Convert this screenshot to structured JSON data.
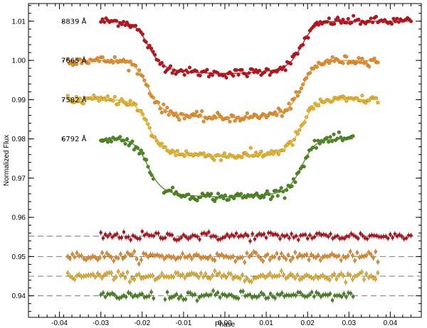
{
  "chart_data": {
    "type": "scatter",
    "xlabel": "Phase",
    "ylabel": "Normalized Flux",
    "xlim": [
      -0.0475,
      0.0475
    ],
    "ylim": [
      0.9345,
      1.0145
    ],
    "x_ticks": [
      -0.04,
      -0.03,
      -0.02,
      -0.01,
      0.0,
      0.01,
      0.02,
      0.03,
      0.04
    ],
    "x_tick_labels": [
      "-0.04",
      "-0.03",
      "-0.02",
      "-0.01",
      "0.00",
      "0.01",
      "0.02",
      "0.03",
      "0.04"
    ],
    "y_ticks": [
      0.94,
      0.95,
      0.96,
      0.97,
      0.98,
      0.99,
      1.0,
      1.01
    ],
    "y_tick_labels": [
      "0.94",
      "0.95",
      "0.96",
      "0.97",
      "0.98",
      "0.99",
      "1.00",
      "1.01"
    ],
    "grid": false,
    "series": [
      {
        "name": "8839 Å",
        "label": "8839 Å",
        "color": "#c0141c",
        "edge_color": "#7a0a10",
        "x_range": [
          -0.03,
          0.045
        ],
        "baseline": 1.01,
        "depth": 0.0115,
        "ingress": -0.0188,
        "egress": 0.0188,
        "transit_width": 0.0016,
        "residual_level": 0.9552
      },
      {
        "name": "7665 Å",
        "label": "7665 Å",
        "color": "#e8902a",
        "edge_color": "#9a5a12",
        "x_range": [
          -0.038,
          0.037
        ],
        "baseline": 1.0,
        "depth": 0.0128,
        "ingress": -0.0188,
        "egress": 0.0188,
        "transit_width": 0.0016,
        "residual_level": 0.95
      },
      {
        "name": "7582 Å",
        "label": "7582 Å",
        "color": "#e8b42a",
        "edge_color": "#9a7612",
        "x_range": [
          -0.038,
          0.037
        ],
        "baseline": 0.99,
        "depth": 0.0125,
        "ingress": -0.0188,
        "egress": 0.0188,
        "transit_width": 0.0016,
        "residual_level": 0.945
      },
      {
        "name": "6792 Å",
        "label": "6792 Å",
        "color": "#4e8a1e",
        "edge_color": "#2a5410",
        "x_range": [
          -0.03,
          0.031
        ],
        "baseline": 0.98,
        "depth": 0.013,
        "ingress": -0.0188,
        "egress": 0.0188,
        "transit_width": 0.0016,
        "residual_level": 0.94
      }
    ]
  }
}
